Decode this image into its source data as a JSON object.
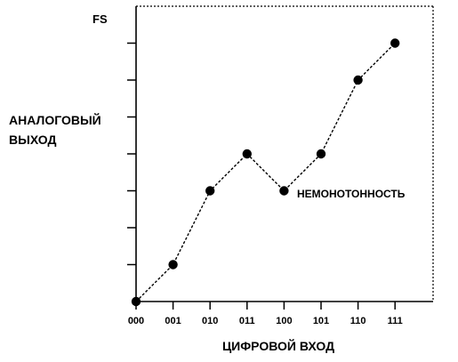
{
  "chart_data": {
    "type": "line",
    "title": "",
    "xlabel": "ЦИФРОВОЙ ВХОД",
    "ylabel": [
      "АНАЛОГОВЫЙ",
      "ВЫХОД"
    ],
    "fs_label": "FS",
    "annotation": "НЕМОНОТОННОСТЬ",
    "categories": [
      "000",
      "001",
      "010",
      "011",
      "100",
      "101",
      "110",
      "111"
    ],
    "values": [
      0,
      1,
      3,
      4,
      3,
      4,
      6,
      7
    ],
    "ylim": [
      0,
      7
    ],
    "grid": false,
    "line_style": "dashed",
    "marker": "filled-circle",
    "color": "#000000"
  }
}
